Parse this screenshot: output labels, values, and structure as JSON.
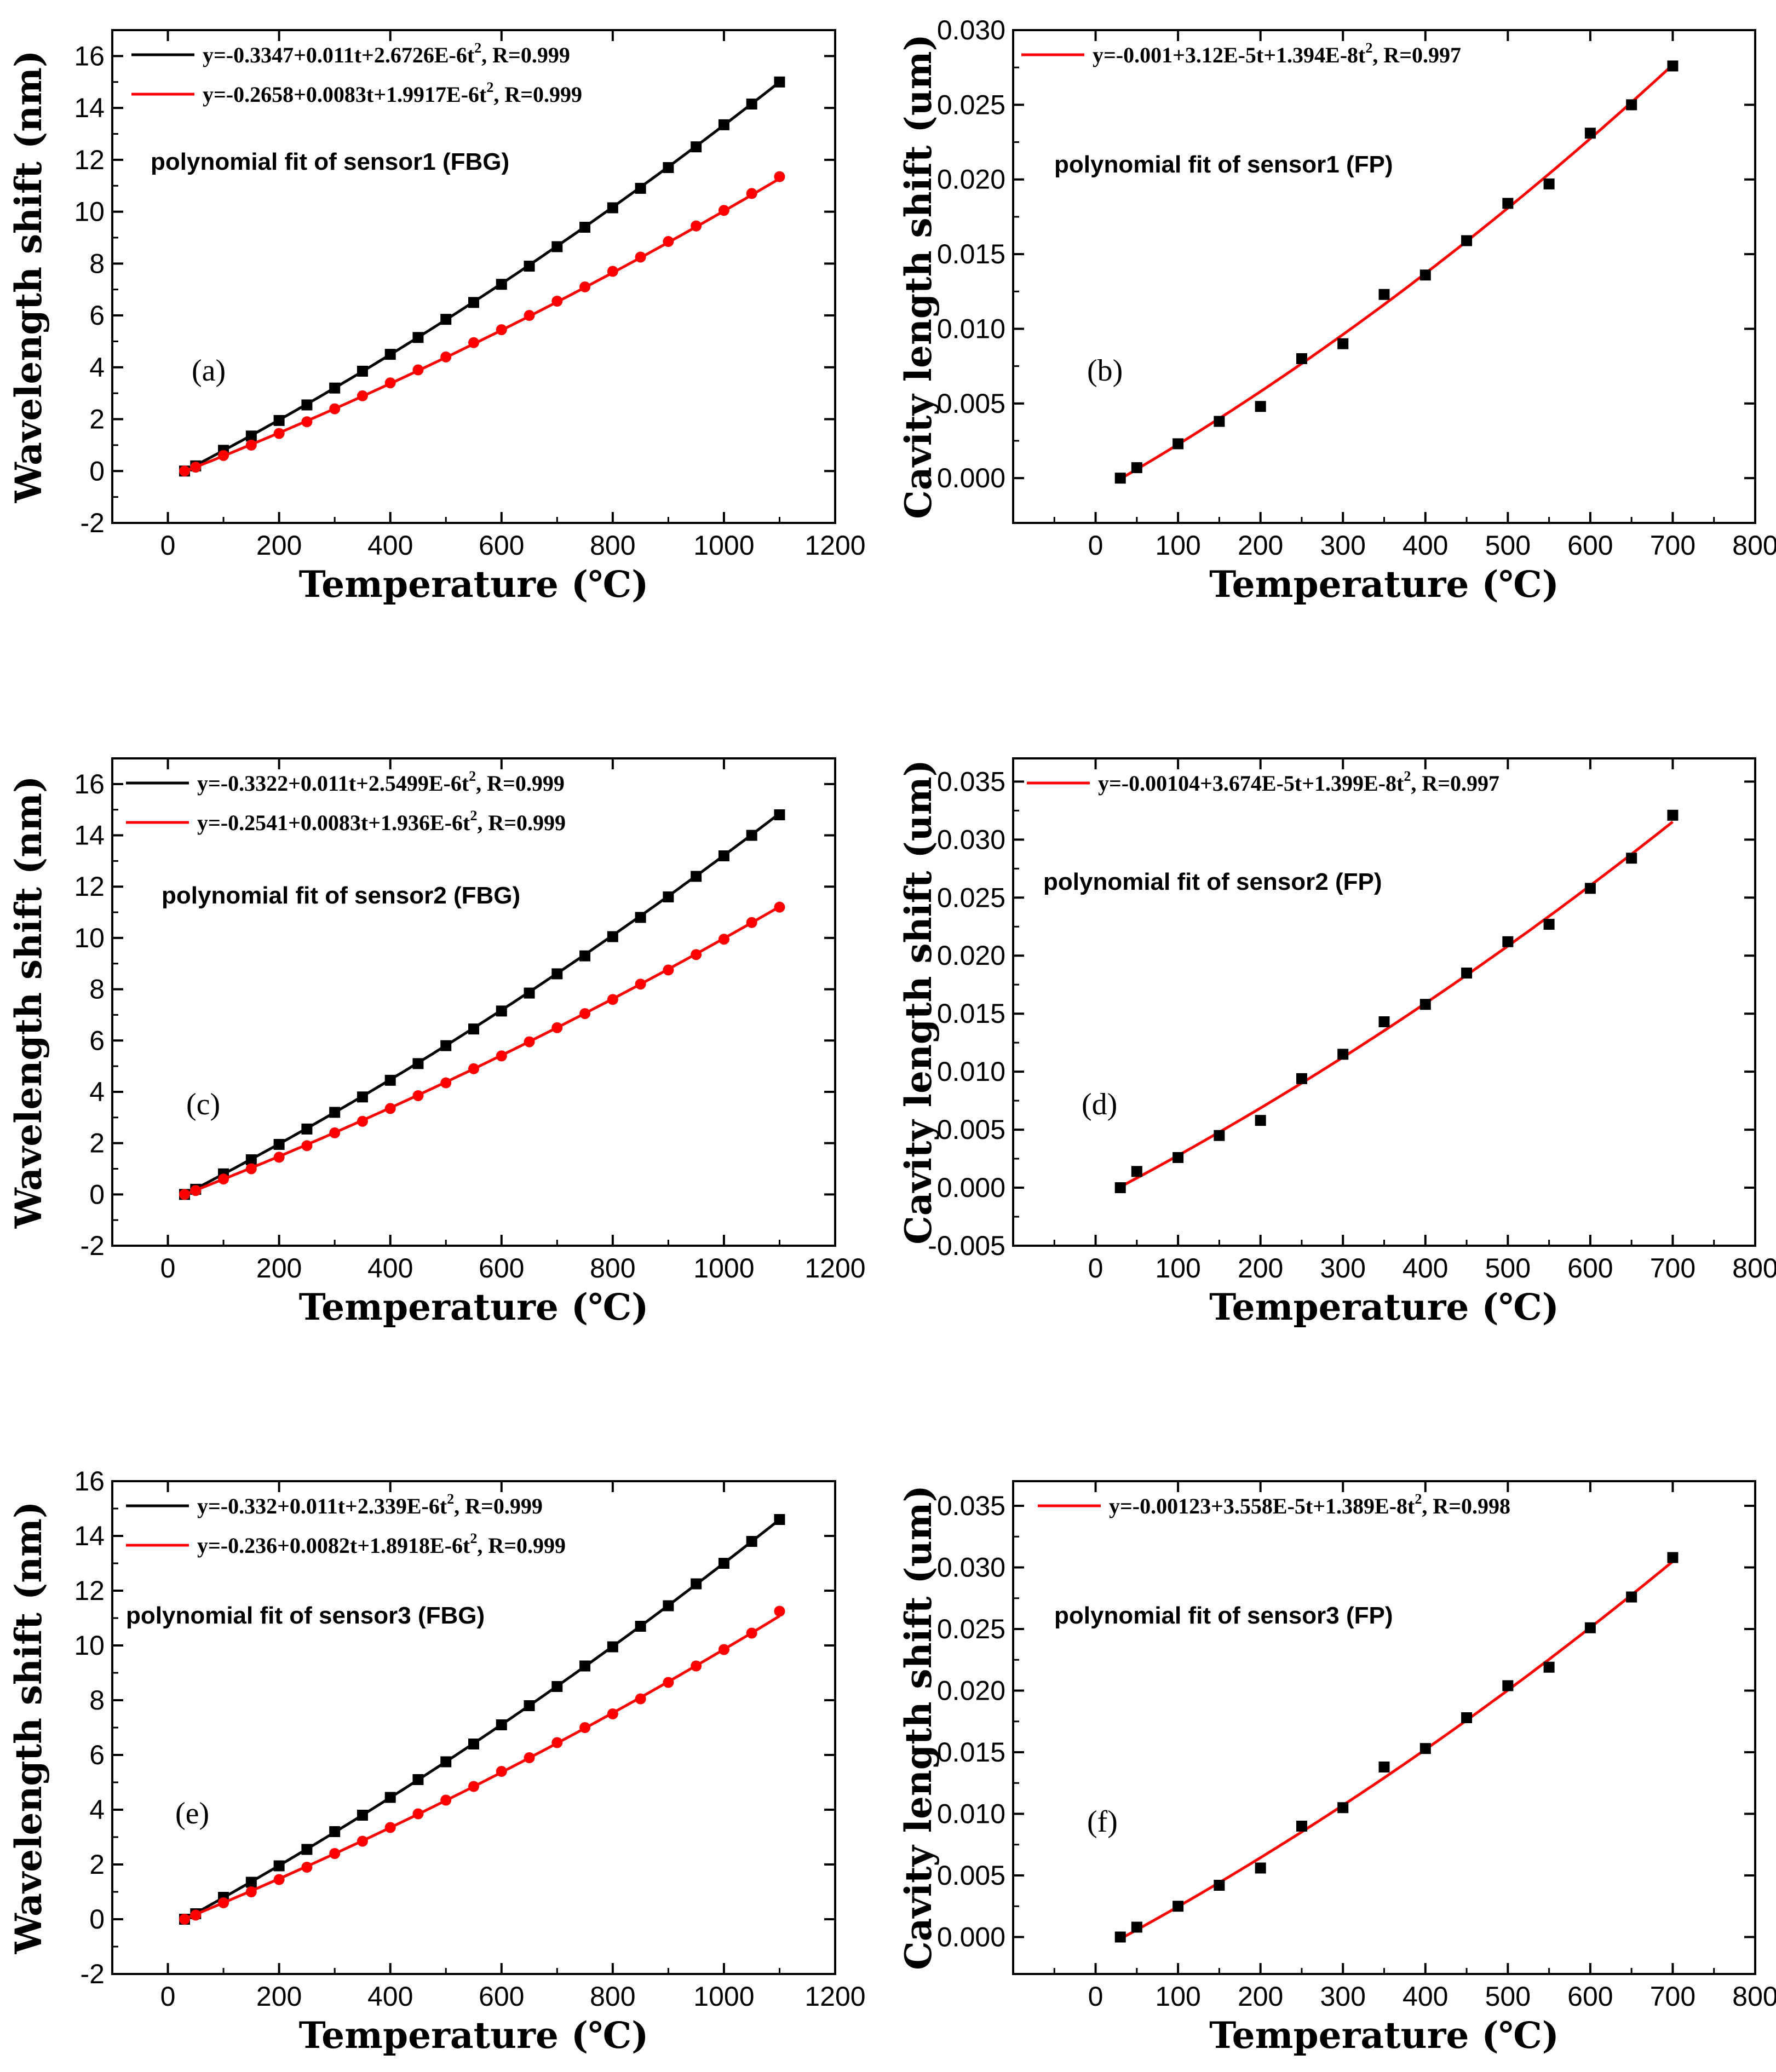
{
  "chart_data": [
    {
      "id": "a",
      "type": "scatter",
      "panel_label": "(a)",
      "xlabel": "Temperature (℃)",
      "ylabel": "Wavelength shift (nm)",
      "xlim": [
        -100,
        1200
      ],
      "ylim": [
        -2,
        17
      ],
      "xticks": [
        0,
        200,
        400,
        600,
        800,
        1000,
        1200
      ],
      "yticks": [
        -2,
        0,
        2,
        4,
        6,
        8,
        10,
        12,
        14,
        16
      ],
      "annotation": "polynomial fit of sensor1 (FBG)",
      "series": [
        {
          "name": "black",
          "color": "#000000",
          "marker": "square",
          "fit_label": "y=-0.3347+0.011t+2.6726E-6t",
          "fit_suffix": ", R=0.999",
          "fit": [
            -0.3347,
            0.011,
            2.6726e-06
          ],
          "x": [
            30,
            50,
            100,
            150,
            200,
            250,
            300,
            350,
            400,
            450,
            500,
            550,
            600,
            650,
            700,
            750,
            800,
            850,
            900,
            950,
            1000,
            1050,
            1100
          ],
          "y": [
            0,
            0.2,
            0.8,
            1.35,
            1.95,
            2.55,
            3.2,
            3.85,
            4.5,
            5.15,
            5.85,
            6.5,
            7.2,
            7.9,
            8.65,
            9.4,
            10.15,
            10.9,
            11.7,
            12.5,
            13.35,
            14.15,
            15.0
          ]
        },
        {
          "name": "red",
          "color": "#ff0000",
          "marker": "circle",
          "fit_label": "y=-0.2658+0.0083t+1.9917E-6t",
          "fit_suffix": ", R=0.999",
          "fit": [
            -0.2658,
            0.0083,
            1.9917e-06
          ],
          "x": [
            30,
            50,
            100,
            150,
            200,
            250,
            300,
            350,
            400,
            450,
            500,
            550,
            600,
            650,
            700,
            750,
            800,
            850,
            900,
            950,
            1000,
            1050,
            1100
          ],
          "y": [
            0,
            0.15,
            0.6,
            1.0,
            1.45,
            1.9,
            2.4,
            2.9,
            3.4,
            3.9,
            4.4,
            4.95,
            5.45,
            6.0,
            6.55,
            7.1,
            7.7,
            8.25,
            8.85,
            9.45,
            10.05,
            10.7,
            11.35
          ]
        }
      ]
    },
    {
      "id": "b",
      "type": "scatter",
      "panel_label": "(b)",
      "xlabel": "Temperature (℃)",
      "ylabel": "Cavity length shift (um)",
      "xlim": [
        -100,
        800
      ],
      "ylim": [
        -0.003,
        0.03
      ],
      "xticks": [
        0,
        100,
        200,
        300,
        400,
        500,
        600,
        700,
        800
      ],
      "yticks": [
        0.0,
        0.005,
        0.01,
        0.015,
        0.02,
        0.025,
        0.03
      ],
      "annotation": "polynomial fit of sensor1 (FP)",
      "series": [
        {
          "name": "black",
          "color": "#000000",
          "marker": "square",
          "fit_color": "#ff0000",
          "fit_label": "y=-0.001+3.12E-5t+1.394E-8t",
          "fit_suffix": ", R=0.997",
          "fit": [
            -0.001,
            3.12e-05,
            1.394e-08
          ],
          "x": [
            30,
            50,
            100,
            150,
            200,
            250,
            300,
            350,
            400,
            450,
            500,
            550,
            600,
            650,
            700
          ],
          "y": [
            0.0,
            0.0007,
            0.0023,
            0.0038,
            0.0048,
            0.008,
            0.009,
            0.0123,
            0.0136,
            0.0159,
            0.0184,
            0.0197,
            0.0231,
            0.025,
            0.0276
          ]
        }
      ]
    },
    {
      "id": "c",
      "type": "scatter",
      "panel_label": "(c)",
      "xlabel": "Temperature (℃)",
      "ylabel": "Wavelength shift (nm)",
      "xlim": [
        -100,
        1200
      ],
      "ylim": [
        -2,
        17
      ],
      "xticks": [
        0,
        200,
        400,
        600,
        800,
        1000,
        1200
      ],
      "yticks": [
        -2,
        0,
        2,
        4,
        6,
        8,
        10,
        12,
        14,
        16
      ],
      "annotation": "polynomial fit of sensor2 (FBG)",
      "series": [
        {
          "name": "black",
          "color": "#000000",
          "marker": "square",
          "fit_label": "y=-0.3322+0.011t+2.5499E-6t",
          "fit_suffix": ", R=0.999",
          "fit": [
            -0.3322,
            0.011,
            2.5499e-06
          ],
          "x": [
            30,
            50,
            100,
            150,
            200,
            250,
            300,
            350,
            400,
            450,
            500,
            550,
            600,
            650,
            700,
            750,
            800,
            850,
            900,
            950,
            1000,
            1050,
            1100
          ],
          "y": [
            0,
            0.2,
            0.8,
            1.35,
            1.95,
            2.55,
            3.2,
            3.8,
            4.45,
            5.1,
            5.8,
            6.45,
            7.15,
            7.85,
            8.6,
            9.3,
            10.05,
            10.8,
            11.6,
            12.4,
            13.2,
            14.0,
            14.8
          ]
        },
        {
          "name": "red",
          "color": "#ff0000",
          "marker": "circle",
          "fit_label": "y=-0.2541+0.0083t+1.936E-6t",
          "fit_suffix": ", R=0.999",
          "fit": [
            -0.2541,
            0.0083,
            1.936e-06
          ],
          "x": [
            30,
            50,
            100,
            150,
            200,
            250,
            300,
            350,
            400,
            450,
            500,
            550,
            600,
            650,
            700,
            750,
            800,
            850,
            900,
            950,
            1000,
            1050,
            1100
          ],
          "y": [
            0,
            0.15,
            0.6,
            1.0,
            1.45,
            1.9,
            2.4,
            2.85,
            3.35,
            3.85,
            4.35,
            4.9,
            5.4,
            5.95,
            6.5,
            7.05,
            7.6,
            8.2,
            8.75,
            9.35,
            9.95,
            10.6,
            11.2
          ]
        }
      ]
    },
    {
      "id": "d",
      "type": "scatter",
      "panel_label": "(d)",
      "xlabel": "Temperature (℃)",
      "ylabel": "Cavity length shift (um)",
      "xlim": [
        -100,
        800
      ],
      "ylim": [
        -0.005,
        0.037
      ],
      "xticks": [
        0,
        100,
        200,
        300,
        400,
        500,
        600,
        700,
        800
      ],
      "yticks": [
        -0.005,
        0.0,
        0.005,
        0.01,
        0.015,
        0.02,
        0.025,
        0.03,
        0.035
      ],
      "annotation": "polynomial fit of sensor2 (FP)",
      "series": [
        {
          "name": "black",
          "color": "#000000",
          "marker": "square",
          "fit_color": "#ff0000",
          "fit_label": "y=-0.00104+3.674E-5t+1.399E-8t",
          "fit_suffix": ", R=0.997",
          "fit": [
            -0.00104,
            3.674e-05,
            1.399e-08
          ],
          "x": [
            30,
            50,
            100,
            150,
            200,
            250,
            300,
            350,
            400,
            450,
            500,
            550,
            600,
            650,
            700
          ],
          "y": [
            0.0,
            0.0014,
            0.0026,
            0.0045,
            0.0058,
            0.0094,
            0.0115,
            0.0143,
            0.0158,
            0.0185,
            0.0212,
            0.0227,
            0.0258,
            0.0284,
            0.0321
          ]
        }
      ]
    },
    {
      "id": "e",
      "type": "scatter",
      "panel_label": "(e)",
      "xlabel": "Temperature (℃)",
      "ylabel": "Wavelength shift (nm)",
      "xlim": [
        -100,
        1200
      ],
      "ylim": [
        -2,
        16
      ],
      "xticks": [
        0,
        200,
        400,
        600,
        800,
        1000,
        1200
      ],
      "yticks": [
        -2,
        0,
        2,
        4,
        6,
        8,
        10,
        12,
        14,
        16
      ],
      "annotation": "polynomial fit of sensor3 (FBG)",
      "series": [
        {
          "name": "black",
          "color": "#000000",
          "marker": "square",
          "fit_label": "y=-0.332+0.011t+2.339E-6t",
          "fit_suffix": ", R=0.999",
          "fit": [
            -0.332,
            0.011,
            2.339e-06
          ],
          "x": [
            30,
            50,
            100,
            150,
            200,
            250,
            300,
            350,
            400,
            450,
            500,
            550,
            600,
            650,
            700,
            750,
            800,
            850,
            900,
            950,
            1000,
            1050,
            1100
          ],
          "y": [
            0,
            0.2,
            0.8,
            1.35,
            1.95,
            2.55,
            3.2,
            3.8,
            4.45,
            5.1,
            5.75,
            6.4,
            7.1,
            7.8,
            8.5,
            9.25,
            9.95,
            10.7,
            11.45,
            12.25,
            13.0,
            13.8,
            14.6
          ]
        },
        {
          "name": "red",
          "color": "#ff0000",
          "marker": "circle",
          "fit_label": "y=-0.236+0.0082t+1.8918E-6t",
          "fit_suffix": ", R=0.999",
          "fit": [
            -0.236,
            0.0082,
            1.8918e-06
          ],
          "x": [
            30,
            50,
            100,
            150,
            200,
            250,
            300,
            350,
            400,
            450,
            500,
            550,
            600,
            650,
            700,
            750,
            800,
            850,
            900,
            950,
            1000,
            1050,
            1100
          ],
          "y": [
            0,
            0.15,
            0.6,
            1.0,
            1.45,
            1.9,
            2.4,
            2.85,
            3.35,
            3.85,
            4.35,
            4.85,
            5.4,
            5.9,
            6.45,
            7.0,
            7.5,
            8.05,
            8.65,
            9.25,
            9.85,
            10.45,
            11.25
          ]
        }
      ]
    },
    {
      "id": "f",
      "type": "scatter",
      "panel_label": "(f)",
      "xlabel": "Temperature (℃)",
      "ylabel": "Cavity length shift (um)",
      "xlim": [
        -100,
        800
      ],
      "ylim": [
        -0.003,
        0.037
      ],
      "xticks": [
        0,
        100,
        200,
        300,
        400,
        500,
        600,
        700,
        800
      ],
      "yticks": [
        0.0,
        0.005,
        0.01,
        0.015,
        0.02,
        0.025,
        0.03,
        0.035
      ],
      "annotation": "polynomial fit of sensor3 (FP)",
      "series": [
        {
          "name": "black",
          "color": "#000000",
          "marker": "square",
          "fit_color": "#ff0000",
          "fit_label": "y=-0.00123+3.558E-5t+1.389E-8t",
          "fit_suffix": ", R=0.998",
          "fit": [
            -0.00123,
            3.558e-05,
            1.389e-08
          ],
          "x": [
            30,
            50,
            100,
            150,
            200,
            250,
            300,
            350,
            400,
            450,
            500,
            550,
            600,
            650,
            700
          ],
          "y": [
            0.0,
            0.0008,
            0.0025,
            0.0042,
            0.0056,
            0.009,
            0.0105,
            0.0138,
            0.0153,
            0.0178,
            0.0204,
            0.0219,
            0.0251,
            0.0276,
            0.0308
          ]
        }
      ]
    }
  ]
}
